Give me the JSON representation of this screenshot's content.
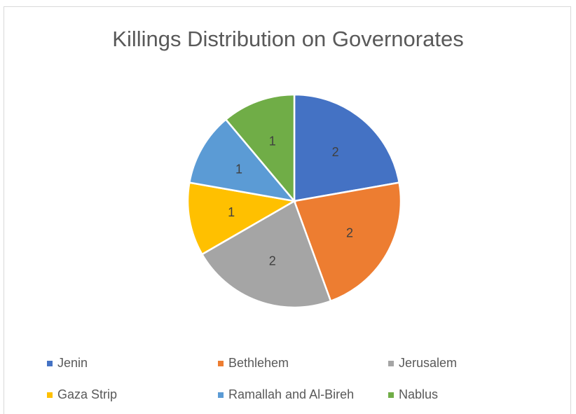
{
  "chart_data": {
    "type": "pie",
    "title": "Killings Distribution on Governorates",
    "categories": [
      "Jenin",
      "Bethlehem",
      "Jerusalem",
      "Gaza Strip",
      "Ramallah and Al-Bireh",
      "Nablus"
    ],
    "values": [
      2,
      2,
      2,
      1,
      1,
      1
    ],
    "data_labels": [
      "2",
      "2",
      "2",
      "1",
      "1",
      "1"
    ],
    "colors": [
      "#4472c4",
      "#ed7d31",
      "#a5a5a5",
      "#ffc000",
      "#5b9bd5",
      "#70ad47"
    ],
    "legend_position": "bottom",
    "start_angle": "12 o'clock, clockwise"
  }
}
